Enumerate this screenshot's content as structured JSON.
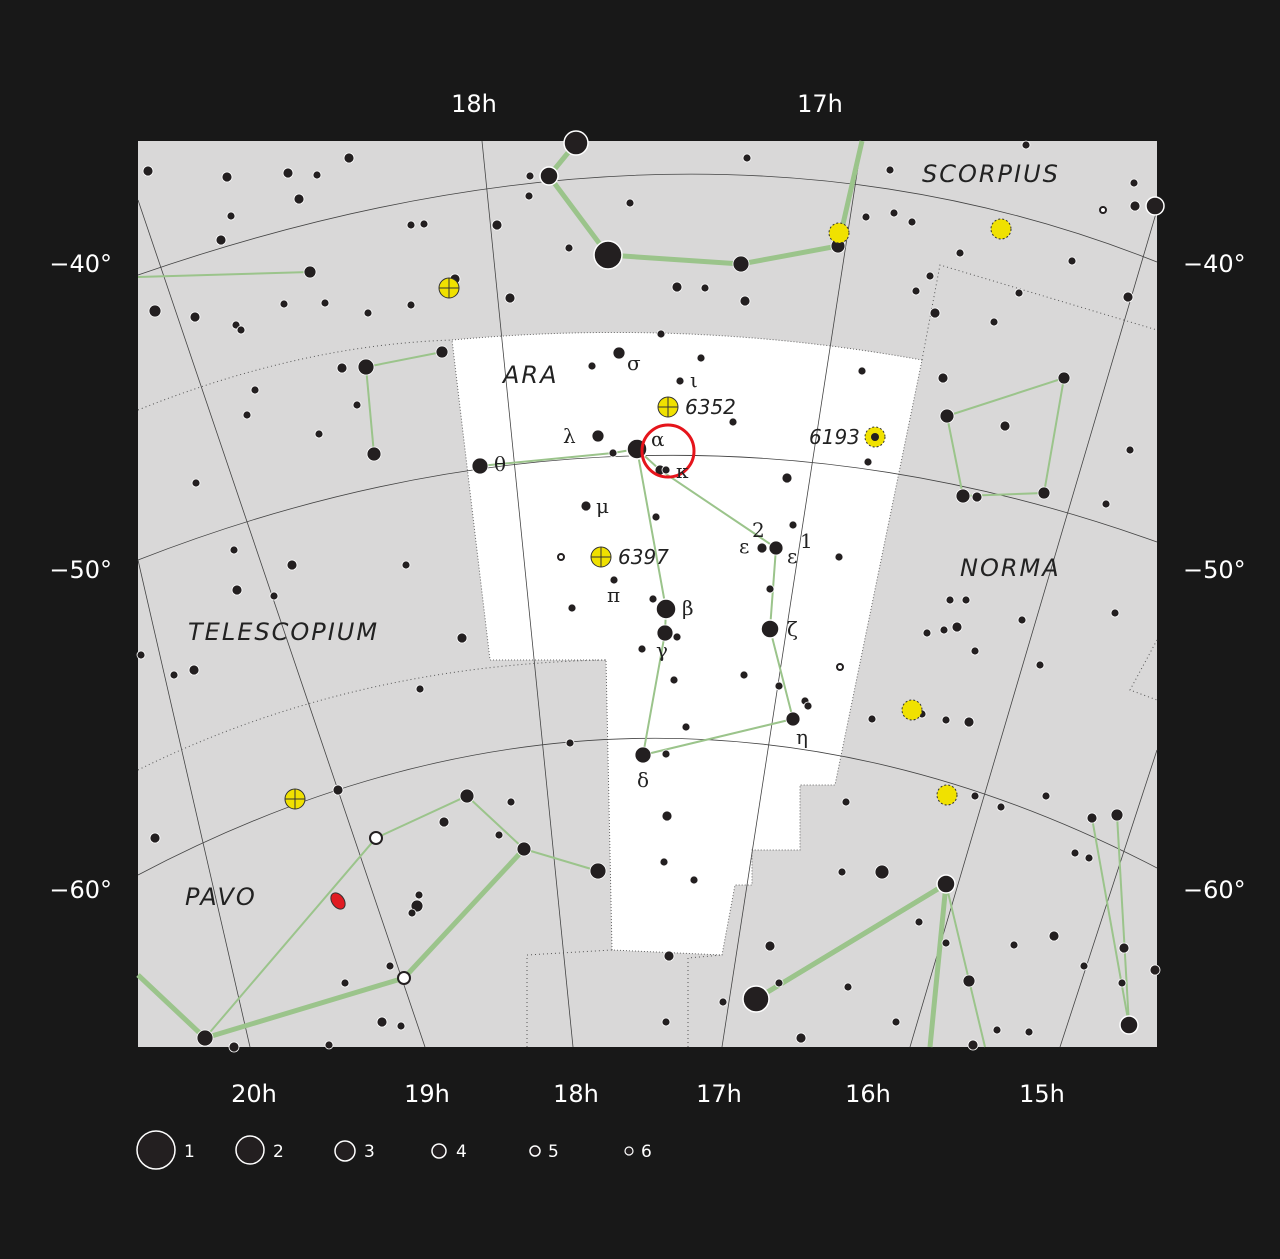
{
  "axes": {
    "top_ra": [
      "18h",
      "17h"
    ],
    "bottom_ra": [
      "20h",
      "19h",
      "18h",
      "17h",
      "16h",
      "15h"
    ],
    "left_dec": [
      "−40°",
      "−50°",
      "−60°"
    ],
    "right_dec": [
      "−40°",
      "−50°",
      "−60°"
    ]
  },
  "constellations": [
    "SCORPIUS",
    "ARA",
    "NORMA",
    "TELESCOPIUM",
    "PAVO"
  ],
  "greek_labels": [
    "σ",
    "ι",
    "λ",
    "α",
    "κ",
    "θ",
    "μ",
    "π",
    "β",
    "γ",
    "δ",
    "ε",
    "2",
    "ε",
    "1",
    "ζ",
    "η"
  ],
  "deep_sky": [
    "6352",
    "6193",
    "6397"
  ],
  "legend": {
    "magnitudes": [
      "1",
      "2",
      "3",
      "4",
      "5",
      "6"
    ]
  },
  "highlight": {
    "object": "α",
    "marker": "red-circle",
    "color": "#e5141b"
  },
  "colors": {
    "background": "#181818",
    "sky": "#d9d8d8",
    "ara": "#ffffff",
    "lines": "#9bc48b",
    "cluster": "#f0e100"
  }
}
